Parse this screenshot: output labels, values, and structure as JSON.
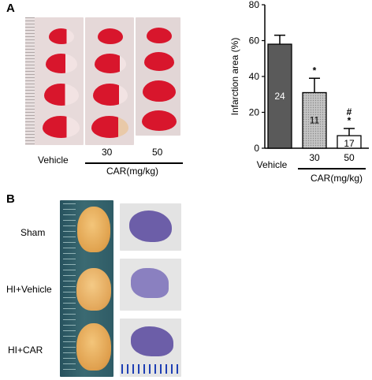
{
  "panel_a": {
    "label": "A",
    "photo_labels": {
      "vehicle": "Vehicle",
      "dose_30": "30",
      "dose_50": "50",
      "group": "CAR(mg/kg)"
    }
  },
  "panel_b": {
    "label": "B",
    "rows": [
      {
        "label": "Sham"
      },
      {
        "label": "HI+Vehicle"
      },
      {
        "label": "HI+CAR"
      }
    ]
  },
  "colors": {
    "infarct_red": "#d8162c",
    "tissue_pale": "#efdede",
    "brain_tan": "#e6ad55",
    "nissl_purple": "#6c5ea8",
    "bar_dark": "#5a5a5a",
    "bar_light": "#b4b4b4",
    "ruler_blue": "#1e3fb4"
  },
  "chart_data": {
    "type": "bar",
    "categories": [
      "Vehicle",
      "30",
      "50"
    ],
    "values": [
      58,
      31,
      7
    ],
    "errors": [
      5,
      8,
      4
    ],
    "bar_labels": [
      "24",
      "11",
      "17"
    ],
    "significance": [
      "",
      "*",
      "#\n*"
    ],
    "ylabel": "Infarction area (%)",
    "ylim": [
      0,
      80
    ],
    "yticks": [
      0,
      20,
      40,
      60,
      80
    ],
    "group_label": "CAR(mg/kg)",
    "grid": false
  }
}
